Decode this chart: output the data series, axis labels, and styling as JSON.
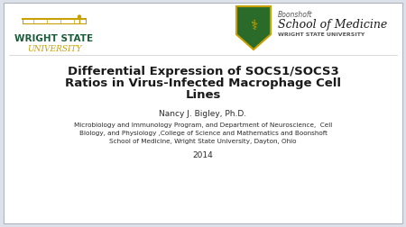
{
  "bg_color": "#dde1ea",
  "white_box_color": "#ffffff",
  "title_line1": "Differential Expression of SOCS1/SOCS3",
  "title_line2": "Ratios in Virus-Infected Macrophage Cell",
  "title_line3": "Lines",
  "title_color": "#1a1a1a",
  "title_fontsize": 9.5,
  "title_fontweight": "bold",
  "author": "Nancy J. Bigley, Ph.D.",
  "author_fontsize": 6.5,
  "affil_line1": "Microbiology and Immunology Program, and Department of Neuroscience,  Cell",
  "affil_line2": "Biology, and Physiology ,College of Science and Mathematics and Boonshoft",
  "affil_line3": "School of Medicine, Wright State University, Dayton, Ohio",
  "affil_fontsize": 5.2,
  "year": "2014",
  "year_fontsize": 6.5,
  "text_color": "#2a2a2a",
  "wsu_state_color": "#1a5c3a",
  "wsu_univ_color": "#c8a000",
  "wsu_plane_color": "#c8a000",
  "boonshoft_text_color": "#1a1a1a",
  "boonshoft_name_color": "#555555",
  "boonshoft_subtext_color": "#777777",
  "shield_color": "#2a6b2a",
  "shield_border_color": "#c8a000",
  "border_color": "#b0b4c0",
  "border_linewidth": 0.8
}
